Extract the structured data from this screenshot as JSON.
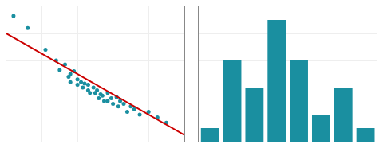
{
  "chart_data": [
    {
      "type": "scatter",
      "series": [
        {
          "type": "scatter",
          "marker": "circle",
          "color": "#1a8fa0",
          "x": [
            0.04,
            0.12,
            0.22,
            0.28,
            0.3,
            0.33,
            0.35,
            0.36,
            0.36,
            0.38,
            0.4,
            0.4,
            0.42,
            0.43,
            0.44,
            0.46,
            0.46,
            0.47,
            0.49,
            0.5,
            0.51,
            0.52,
            0.53,
            0.54,
            0.55,
            0.57,
            0.57,
            0.59,
            0.6,
            0.62,
            0.63,
            0.64,
            0.66,
            0.68,
            0.7,
            0.72,
            0.75,
            0.8,
            0.85,
            0.9
          ],
          "values": [
            0.93,
            0.84,
            0.68,
            0.6,
            0.53,
            0.57,
            0.48,
            0.5,
            0.44,
            0.52,
            0.46,
            0.42,
            0.44,
            0.4,
            0.43,
            0.38,
            0.42,
            0.36,
            0.4,
            0.36,
            0.38,
            0.32,
            0.35,
            0.34,
            0.3,
            0.36,
            0.3,
            0.32,
            0.28,
            0.33,
            0.26,
            0.3,
            0.28,
            0.22,
            0.26,
            0.24,
            0.2,
            0.22,
            0.18,
            0.14
          ]
        },
        {
          "type": "line",
          "line_style": "solid",
          "color": "#cc0000",
          "x": [
            0.0,
            1.0
          ],
          "values": [
            0.8,
            0.05
          ]
        }
      ],
      "xlim": [
        0,
        1
      ],
      "xticks": [
        0,
        0.2,
        0.4,
        0.6,
        0.8,
        1
      ],
      "ylim": [
        0,
        1
      ],
      "yticks": [
        0,
        0.2,
        0.4,
        0.6,
        0.8,
        1
      ],
      "grid": true,
      "tick_labels": false
    },
    {
      "type": "bar",
      "categories": [
        null,
        null,
        null,
        null,
        null,
        null,
        null,
        null
      ],
      "values": [
        1,
        6,
        4,
        9,
        6,
        2,
        4,
        1
      ],
      "color": "#1a8fa0",
      "ylim": [
        0,
        10
      ],
      "yticks": [
        0,
        2,
        4,
        6,
        8,
        10
      ],
      "grid": true,
      "tick_labels": false
    }
  ]
}
